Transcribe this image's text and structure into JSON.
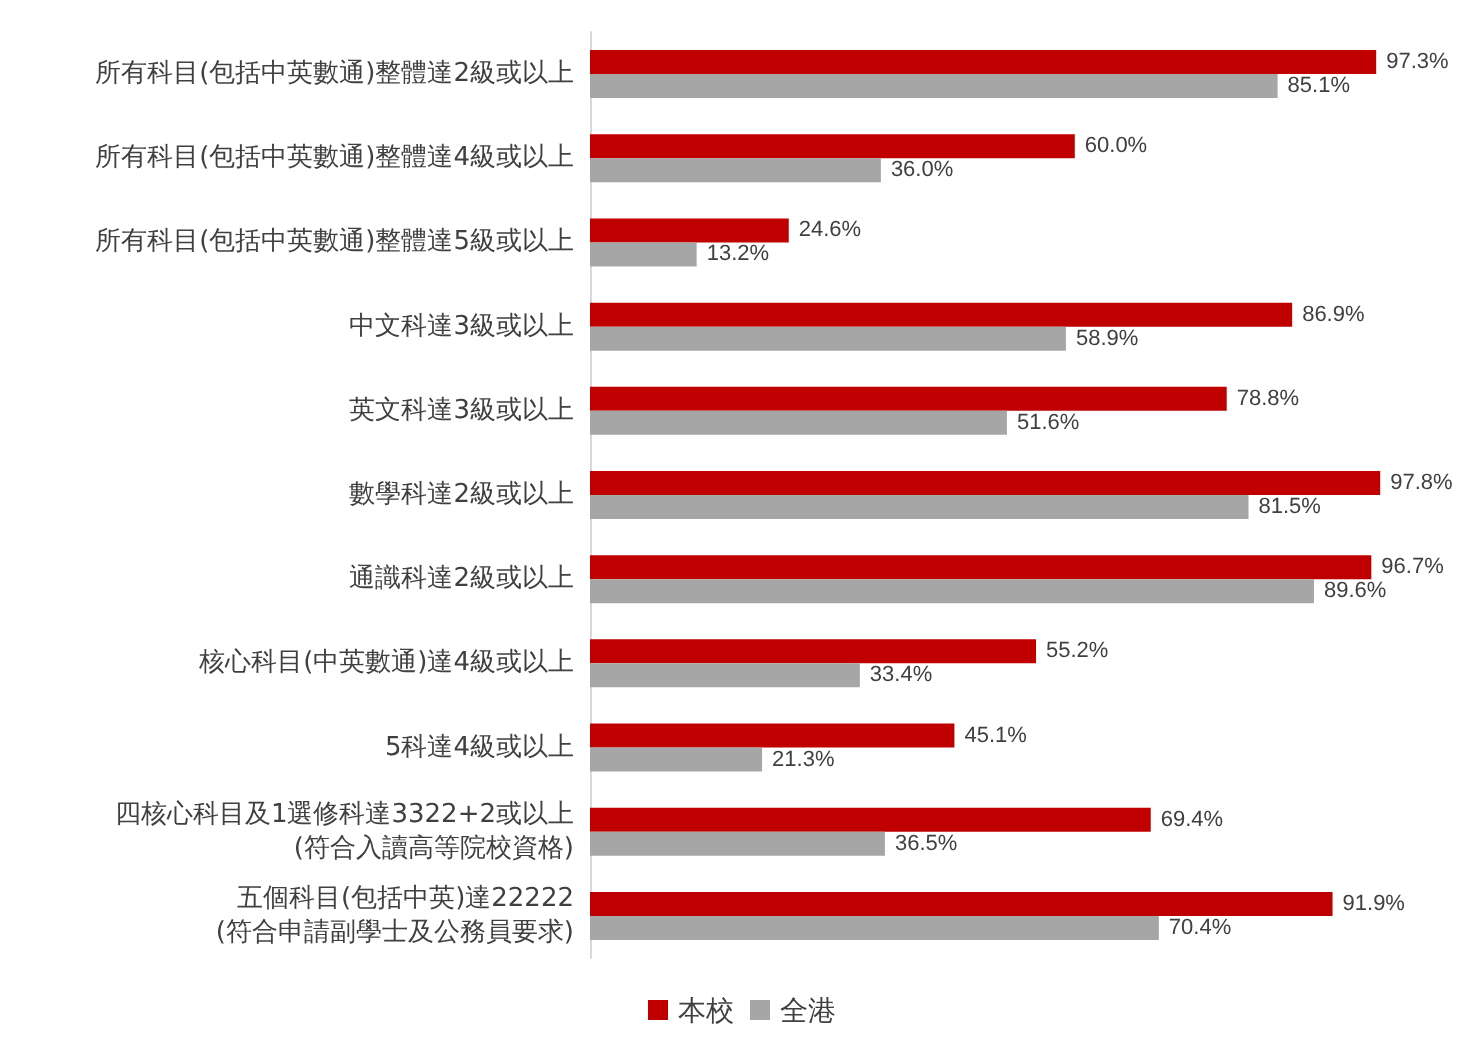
{
  "chart_data": {
    "type": "bar",
    "orientation": "horizontal",
    "grid": false,
    "legend": "bottom",
    "categories": [
      "所有科目(包括中英數通)整體達2級或以上",
      "所有科目(包括中英數通)整體達4級或以上",
      "所有科目(包括中英數通)整體達5級或以上",
      "中文科達3級或以上",
      "英文科達3級或以上",
      "數學科達2級或以上",
      "通識科達2級或以上",
      "核心科目(中英數通)達4級或以上",
      "5科達4級或以上",
      "四核心科目及1選修科達3322+2或以上\n(符合入讀高等院校資格)",
      "五個科目(包括中英)達22222\n(符合申請副學士及公務員要求)"
    ],
    "series": [
      {
        "name": "本校",
        "color": "#c00000",
        "values": [
          97.3,
          60.0,
          24.6,
          86.9,
          78.8,
          97.8,
          96.7,
          55.2,
          45.1,
          69.4,
          91.9
        ],
        "value_labels": [
          "97.3%",
          "60.0%",
          "24.6%",
          "86.9%",
          "78.8%",
          "97.8%",
          "96.7%",
          "55.2%",
          "45.1%",
          "69.4%",
          "91.9%"
        ]
      },
      {
        "name": "全港",
        "color": "#a6a6a6",
        "values": [
          85.1,
          36.0,
          13.2,
          58.9,
          51.6,
          81.5,
          89.6,
          33.4,
          21.3,
          36.5,
          70.4
        ],
        "value_labels": [
          "85.1%",
          "36.0%",
          "13.2%",
          "58.9%",
          "51.6%",
          "81.5%",
          "89.6%",
          "33.4%",
          "21.3%",
          "36.5%",
          "70.4%"
        ]
      }
    ]
  }
}
